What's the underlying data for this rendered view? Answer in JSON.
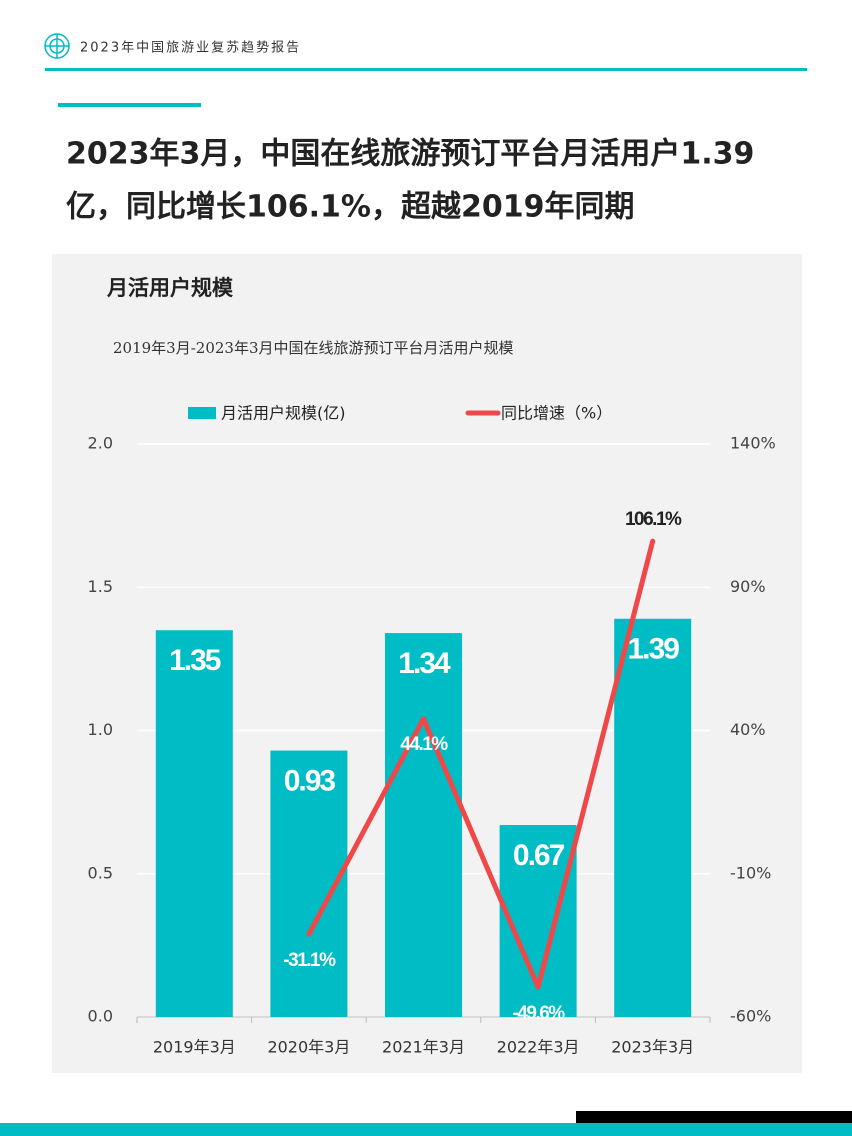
{
  "header": "2023年中国旅游业复苏趋势报告",
  "headline": [
    "2023年3月，中国在线旅游预订平台月活用户1.39",
    "亿，同比增长106.1%，超越2019年同期"
  ],
  "section_title": "月活用户规模",
  "chart_data": {
    "type": "bar_line",
    "title": "2019年3月-2023年3月中国在线旅游预订平台月活用户规模",
    "categories": [
      "2019年3月",
      "2020年3月",
      "2021年3月",
      "2022年3月",
      "2023年3月"
    ],
    "series": [
      {
        "name": "月活用户规模(亿)",
        "color": "#00bcc4",
        "type": "bar",
        "values": [
          1.35,
          0.93,
          1.34,
          0.67,
          1.39
        ]
      },
      {
        "name": "同比增速（%）",
        "color": "#f04848",
        "type": "line",
        "axis": "y2",
        "values": [
          null,
          -31.1,
          44.1,
          -49.6,
          106.1
        ],
        "value_labels": [
          null,
          "-31.1%",
          "44.1%",
          "-49.6%",
          "106.1%"
        ]
      }
    ],
    "ylim": [
      0,
      2.0
    ],
    "yticks": [
      {
        "value": 0,
        "label": "0.0"
      },
      0.5,
      {
        "value": 1,
        "label": "1.0"
      },
      1.5,
      {
        "value": 2,
        "label": "2.0"
      }
    ],
    "y2lim": [
      -60,
      140
    ],
    "y2ticks": [
      {
        "value": -60,
        "label": "-60%"
      },
      {
        "value": -10,
        "label": "-10%"
      },
      {
        "value": 40,
        "label": "40%"
      },
      {
        "value": 90,
        "label": "90%"
      },
      {
        "value": 140,
        "label": "140%"
      }
    ],
    "grid": true,
    "legend": "top"
  }
}
